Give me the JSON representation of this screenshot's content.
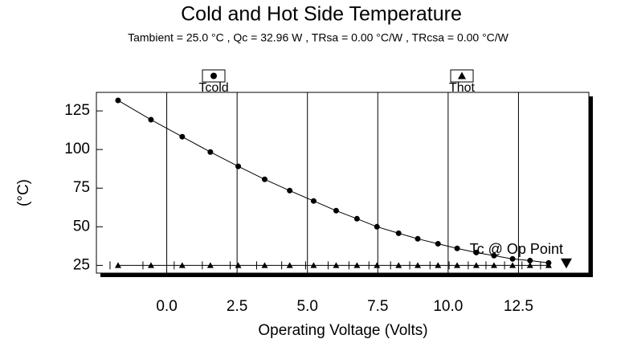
{
  "chart_data": {
    "type": "line",
    "title": "Cold and Hot Side Temperature",
    "subtitle": "Tambient = 25.0 °C , Qc = 32.96 W , TRsa = 0.00 °C/W , TRcsa = 0.00 °C/W",
    "x_label": "Operating Voltage (Volts)",
    "y_label": "(°C)",
    "x": [
      -1.73,
      -0.56,
      0.55,
      1.55,
      2.54,
      3.48,
      4.37,
      5.22,
      6.02,
      6.76,
      7.47,
      8.24,
      8.92,
      9.64,
      10.32,
      11.0,
      11.63,
      12.29,
      12.91,
      13.57
    ],
    "series": [
      {
        "name": "Tcold",
        "color": "#000000",
        "marker": "circle",
        "values": [
          131.8,
          119.3,
          108.3,
          98.4,
          89.1,
          80.7,
          73.4,
          66.7,
          60.4,
          55.2,
          50.0,
          45.8,
          42.2,
          39.0,
          36.0,
          33.3,
          31.3,
          29.2,
          28.1,
          26.6
        ]
      },
      {
        "name": "Thot",
        "color": "#000000",
        "marker": "triangle",
        "values": [
          25,
          25,
          25,
          25,
          25,
          25,
          25,
          25,
          25,
          25,
          25,
          25,
          25,
          25,
          25,
          25,
          25,
          25,
          25,
          25
        ]
      }
    ],
    "annotation": {
      "label": "Tc @ Op Point",
      "x": 14.2,
      "y": 26.6
    },
    "xlim": [
      -2.5,
      15
    ],
    "ylim": [
      20,
      137
    ],
    "xticks": [
      {
        "value": 0,
        "label": "0.0"
      },
      {
        "value": 2.5,
        "label": "2.5"
      },
      {
        "value": 5,
        "label": "5.0"
      },
      {
        "value": 7.5,
        "label": "7.5"
      },
      {
        "value": 10,
        "label": "10.0"
      },
      {
        "value": 12.5,
        "label": "12.5"
      }
    ],
    "yticks": [
      25,
      50,
      75,
      100,
      125
    ],
    "grid": "x"
  }
}
